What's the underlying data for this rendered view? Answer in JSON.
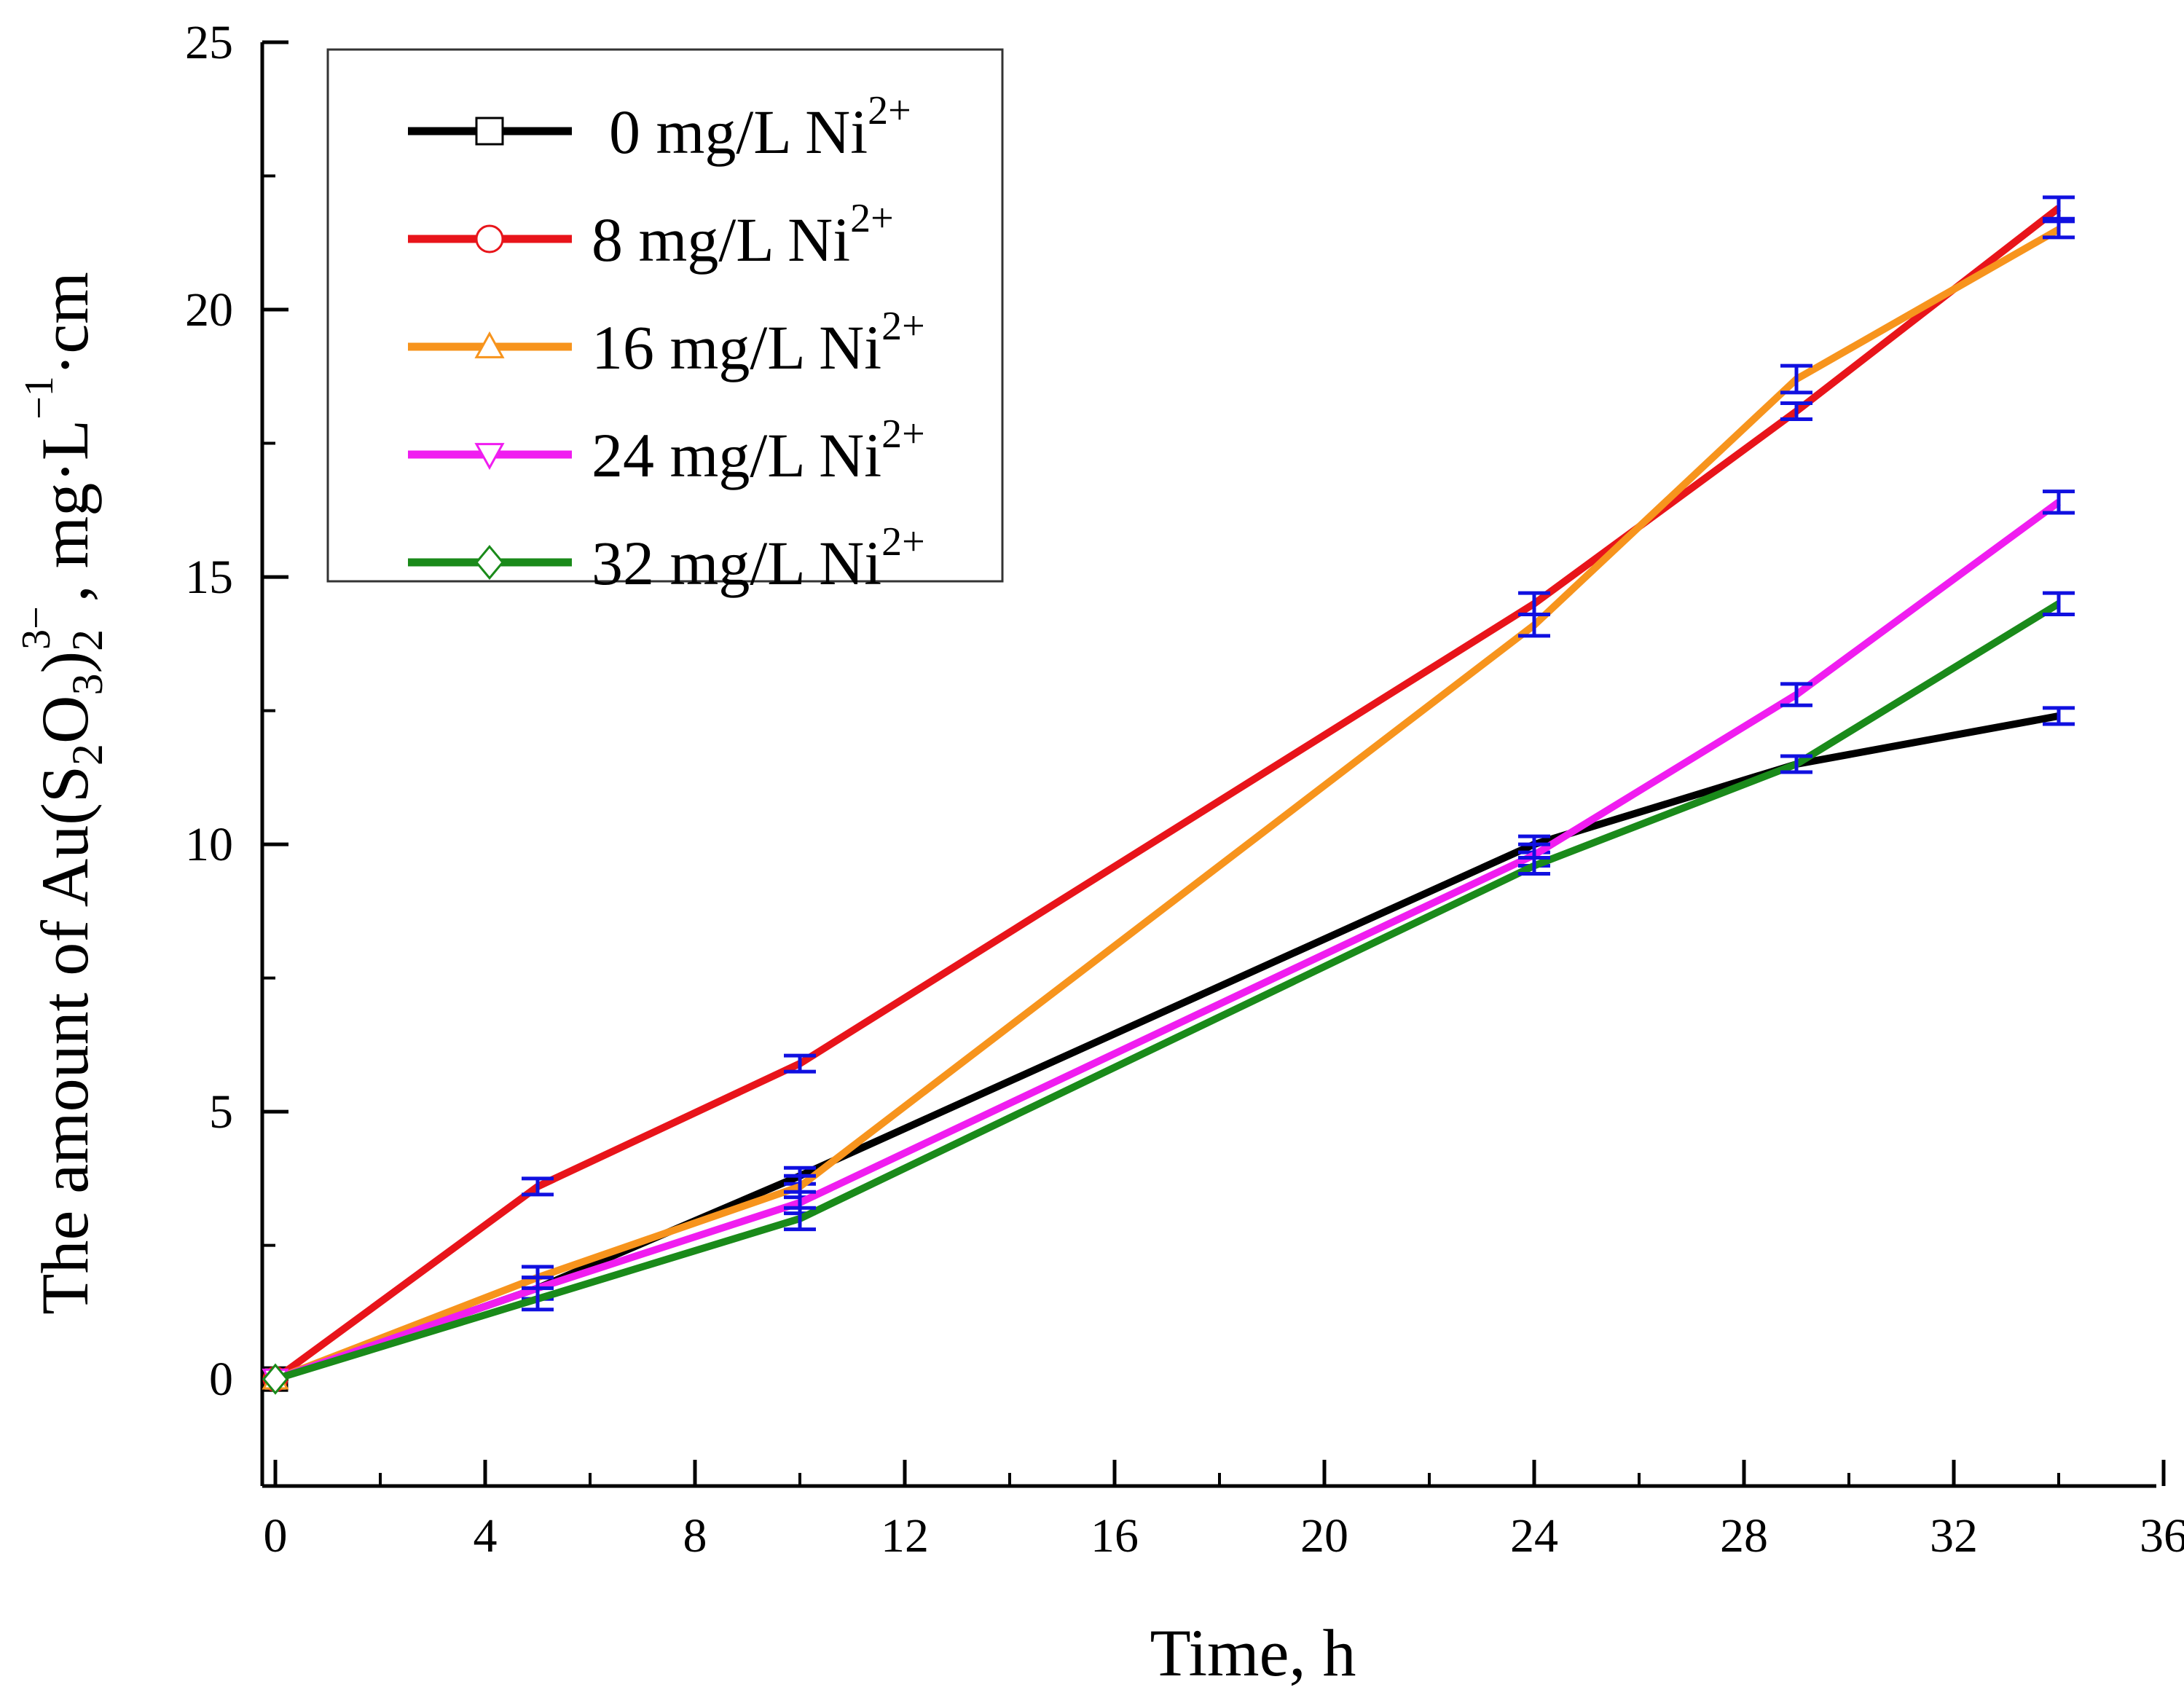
{
  "chart_data": {
    "type": "line",
    "title": "",
    "xlabel": "Time, h",
    "ylabel": {
      "pre": "The amount of Au(S",
      "sub1": "2",
      "mid1": "O",
      "sub2": "3",
      "mid2": ")",
      "sub3": "2",
      "sup1": "3−",
      "mid3": ", mg·L",
      "sup2": "−1",
      "post": "·cm"
    },
    "xlim": [
      0,
      36
    ],
    "ylim": [
      -2,
      25
    ],
    "x_ticks": [
      "0",
      "4",
      "8",
      "12",
      "16",
      "20",
      "24",
      "28",
      "32",
      "36"
    ],
    "y_ticks": [
      "0",
      "5",
      "10",
      "15",
      "20",
      "25"
    ],
    "legend_position": "top-left",
    "error_bar_color": "#1010e0",
    "series": [
      {
        "name": "0 mg/L  Ni",
        "name_sup": "2+",
        "color": "#000000",
        "marker": "square",
        "x": [
          0,
          5,
          10,
          24,
          29,
          34
        ],
        "y": [
          0,
          1.7,
          3.8,
          10.0,
          11.5,
          12.4
        ],
        "err": [
          0,
          0.2,
          0.15,
          0.15,
          0.15,
          0.15
        ]
      },
      {
        "name": "8 mg/L  Ni",
        "name_sup": "2+",
        "color": "#e8141a",
        "marker": "circle",
        "x": [
          0,
          5,
          10,
          24,
          29,
          34
        ],
        "y": [
          0,
          3.6,
          5.9,
          14.5,
          18.1,
          21.9
        ],
        "err": [
          0,
          0.15,
          0.15,
          0.2,
          0.15,
          0.2
        ]
      },
      {
        "name": "16 mg/L Ni",
        "name_sup": "2+",
        "color": "#f7941d",
        "marker": "triangle-up",
        "x": [
          0,
          5,
          10,
          24,
          29,
          34
        ],
        "y": [
          0,
          1.9,
          3.6,
          14.1,
          18.7,
          21.5
        ],
        "err": [
          0,
          0.2,
          0.2,
          0.2,
          0.25,
          0.15
        ]
      },
      {
        "name": "24 mg/L Ni",
        "name_sup": "2+",
        "color": "#f01df0",
        "marker": "triangle-down",
        "x": [
          0,
          5,
          10,
          24,
          29,
          34
        ],
        "y": [
          0,
          1.7,
          3.3,
          9.8,
          12.8,
          16.4
        ],
        "err": [
          0,
          0.2,
          0.2,
          0.2,
          0.2,
          0.2
        ]
      },
      {
        "name": "32 mg/L Ni",
        "name_sup": "2+",
        "color": "#1a8a1a",
        "marker": "diamond",
        "x": [
          0,
          5,
          10,
          24,
          29,
          34
        ],
        "y": [
          0,
          1.5,
          3.0,
          9.6,
          11.5,
          14.5
        ],
        "err": [
          0,
          0.2,
          0.2,
          0.15,
          0.15,
          0.2
        ]
      }
    ]
  }
}
